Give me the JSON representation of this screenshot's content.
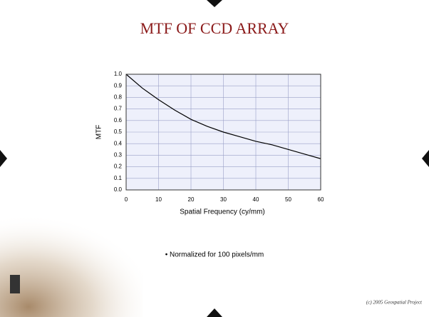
{
  "chart_data": {
    "type": "line",
    "title": "MTF OF CCD ARRAY",
    "x_label": "Spatial Frequency (cy/mm)",
    "y_label": "MTF",
    "x": [
      0,
      5,
      10,
      15,
      20,
      25,
      30,
      35,
      40,
      45,
      50,
      55,
      60
    ],
    "values": [
      1.0,
      0.88,
      0.78,
      0.69,
      0.61,
      0.55,
      0.5,
      0.46,
      0.42,
      0.39,
      0.35,
      0.31,
      0.27
    ],
    "color": "#000000",
    "xlim": [
      0,
      60
    ],
    "xticks": [
      0,
      10,
      20,
      30,
      40,
      50,
      60
    ],
    "ylim": [
      0,
      1
    ],
    "yticks": [
      {
        "value": 0,
        "label": "0.0"
      },
      0.1,
      0.2,
      0.3,
      0.4,
      0.5,
      0.6,
      0.7,
      0.8,
      0.9,
      {
        "value": 1,
        "label": "1.0"
      }
    ],
    "grid": true,
    "annotations": [
      "• Normalized for 100 pixels/mm"
    ]
  },
  "footer": "(c) 2005 Geospatial Project"
}
